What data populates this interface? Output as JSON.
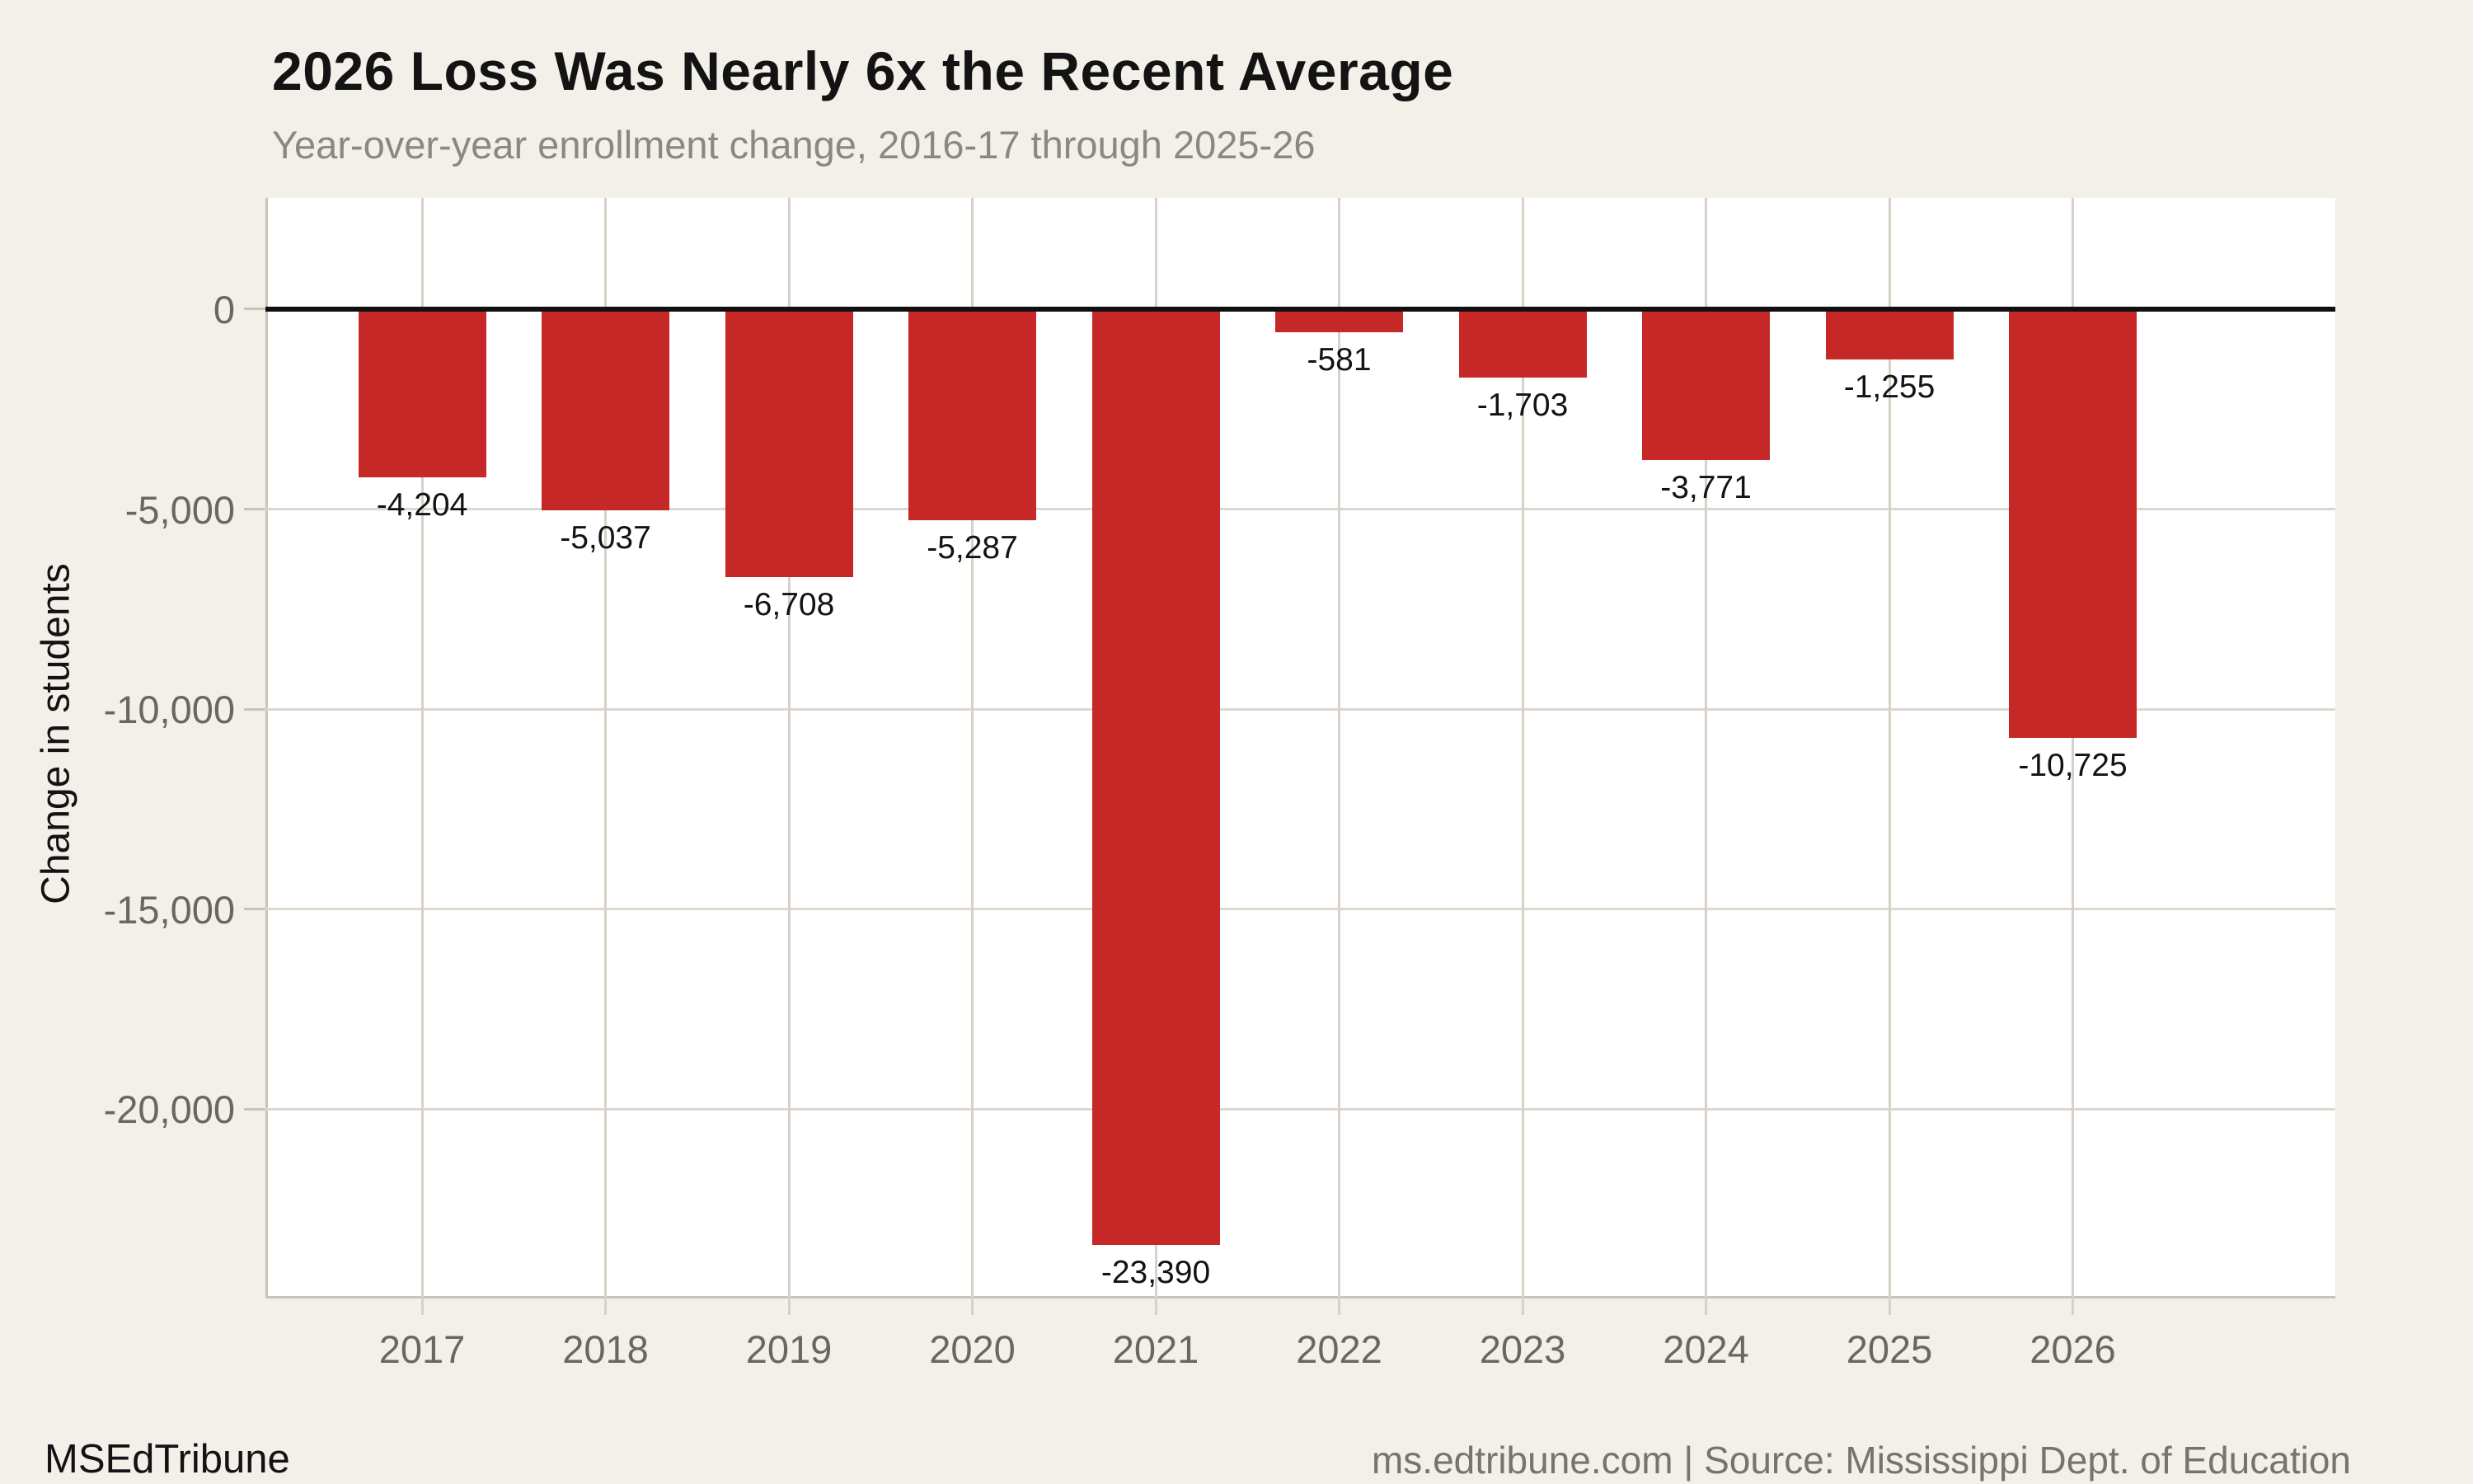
{
  "header": {
    "title": "2026 Loss Was Nearly 6x the Recent Average",
    "subtitle": "Year-over-year enrollment change, 2016-17 through 2025-26"
  },
  "footer": {
    "brand": "MSEdTribune",
    "source": "ms.edtribune.com | Source: Mississippi Dept. of Education"
  },
  "chart_data": {
    "type": "bar",
    "title": "2026 Loss Was Nearly 6x the Recent Average",
    "subtitle": "Year-over-year enrollment change, 2016-17 through 2025-26",
    "xlabel": "",
    "ylabel": "Change in students",
    "categories": [
      "2017",
      "2018",
      "2019",
      "2020",
      "2021",
      "2022",
      "2023",
      "2024",
      "2025",
      "2026"
    ],
    "values": [
      -4204,
      -5037,
      -6708,
      -5287,
      -23390,
      -581,
      -1703,
      -3771,
      -1255,
      -10725
    ],
    "value_labels": [
      "-4,204",
      "-5,037",
      "-6,708",
      "-5,287",
      "-23,390",
      "-581",
      "-1,703",
      "-3,771",
      "-1,255",
      "-10,725"
    ],
    "yticks": [
      {
        "value": 0,
        "label": "0"
      },
      {
        "value": -5000,
        "label": "-5,000"
      },
      {
        "value": -10000,
        "label": "-10,000"
      },
      {
        "value": -15000,
        "label": "-15,000"
      },
      {
        "value": -20000,
        "label": "-20,000"
      }
    ],
    "ylim": [
      -24730,
      2780
    ],
    "grid": true,
    "legend": false,
    "bar_color": "#c62828",
    "background_color": "#f3efe9",
    "plot_background_color": "#ffffff",
    "zero_line_color": "#101010"
  }
}
